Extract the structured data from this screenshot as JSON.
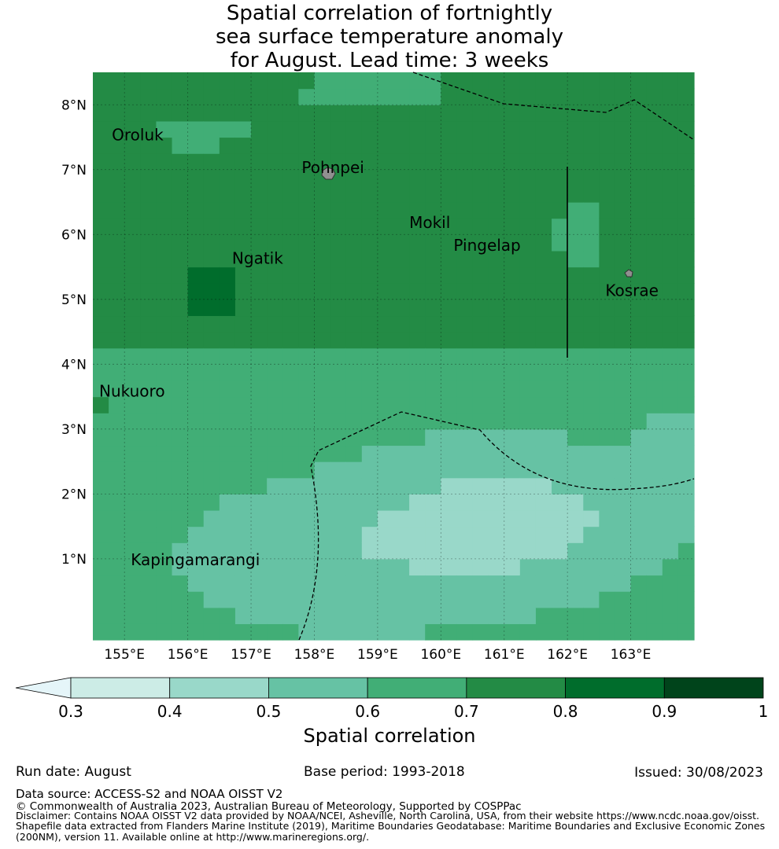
{
  "title": {
    "line1": "Spatial correlation of fortnightly",
    "line2": "sea surface temperature anomaly",
    "line3": "for August. Lead time: 3 weeks"
  },
  "map": {
    "lon_range": [
      154.5,
      164.0
    ],
    "lat_range": [
      -0.25,
      8.5
    ],
    "lon_ticks": [
      "155°E",
      "156°E",
      "157°E",
      "158°E",
      "159°E",
      "160°E",
      "161°E",
      "162°E",
      "163°E"
    ],
    "lat_ticks": [
      "1°N",
      "2°N",
      "3°N",
      "4°N",
      "5°N",
      "6°N",
      "7°N",
      "8°N"
    ],
    "places": [
      {
        "name": "Oroluk",
        "lon": 154.8,
        "lat": 7.45
      },
      {
        "name": "Pohnpei",
        "lon": 157.8,
        "lat": 6.95
      },
      {
        "name": "Mokil",
        "lon": 159.5,
        "lat": 6.1
      },
      {
        "name": "Pingelap",
        "lon": 160.2,
        "lat": 5.75
      },
      {
        "name": "Ngatik",
        "lon": 156.7,
        "lat": 5.55
      },
      {
        "name": "Kosrae",
        "lon": 162.6,
        "lat": 5.05
      },
      {
        "name": "Nukuoro",
        "lon": 154.6,
        "lat": 3.5
      },
      {
        "name": "Kapingamarangi",
        "lon": 155.1,
        "lat": 0.9
      }
    ],
    "grid_resolution_deg": 0.25,
    "colors": [
      "#e5f5f9",
      "#ccece6",
      "#99d8c9",
      "#66c2a4",
      "#41ae76",
      "#238b45",
      "#006d2c",
      "#00441b"
    ]
  },
  "colorbar": {
    "ticks": [
      "0.3",
      "0.4",
      "0.5",
      "0.6",
      "0.7",
      "0.8",
      "0.9",
      "1"
    ],
    "label": "Spatial correlation",
    "extend": "min"
  },
  "footer": {
    "run_date": "Run date: August",
    "base_period": "Base period: 1993-2018",
    "issued": "Issued: 30/08/2023",
    "data_source": "Data source: ACCESS-S2 and NOAA OISST V2",
    "copyright": "© Commonwealth of Australia 2023, Australian Bureau of Meteorology, Supported by COSPPac",
    "disclaimer1": "Disclaimer: Contains NOAA OISST V2 data provided by NOAA/NCEI, Asheville, North Carolina, USA, from their website https://www.ncdc.noaa.gov/oisst.",
    "disclaimer2": "Shapefile data extracted from Flanders Marine Institute (2019), Maritime Boundaries Geodatabase: Maritime Boundaries and Exclusive Economic Zones",
    "disclaimer3": "(200NM), version 11. Available online at http://www.marineregions.org/."
  }
}
